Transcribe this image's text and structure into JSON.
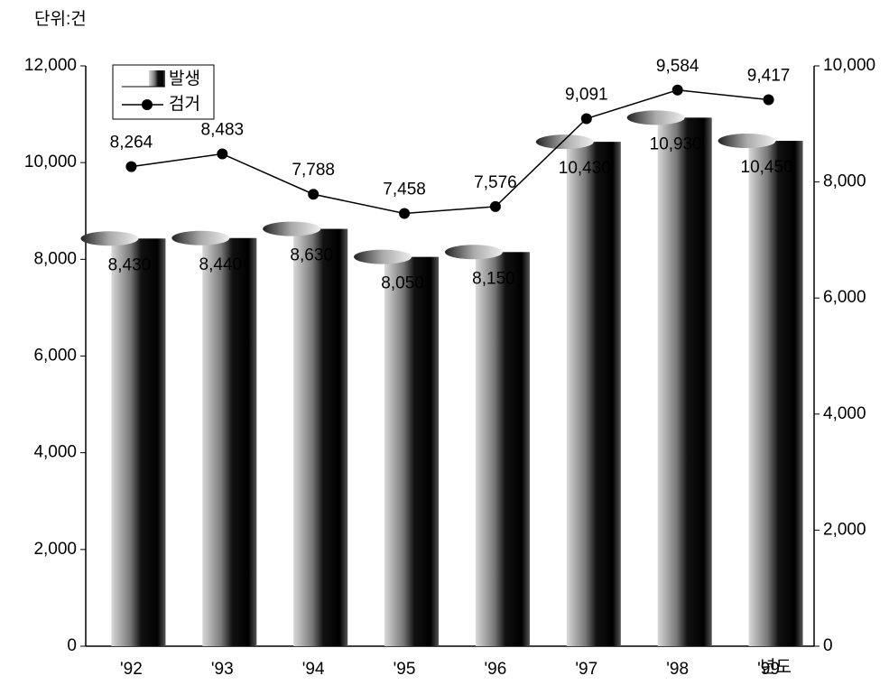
{
  "chart_data": {
    "type": "bar-line",
    "unit_label": "단위:건",
    "x_unit_label": "년도",
    "categories": [
      "'92",
      "'93",
      "'94",
      "'95",
      "'96",
      "'97",
      "'98",
      "'99"
    ],
    "series": [
      {
        "name": "발생",
        "color": "#000000",
        "values": [
          8430,
          8440,
          8630,
          8050,
          8150,
          10430,
          10930,
          10450
        ],
        "value_labels": [
          "8,430",
          "8,440",
          "8,630",
          "8,050",
          "8,150",
          "10,430",
          "10,930",
          "10,450"
        ]
      },
      {
        "name": "검거",
        "color": "#000000",
        "axis": "y2",
        "values": [
          8264,
          8483,
          7788,
          7458,
          7576,
          9091,
          9584,
          9417
        ],
        "value_labels": [
          "8,264",
          "8,483",
          "7,788",
          "7,458",
          "7,576",
          "9,091",
          "9,584",
          "9,417"
        ]
      }
    ],
    "ylim": [
      0,
      12000
    ],
    "yticks": [
      0,
      {
        "value": 2000,
        "label": "2,000"
      },
      {
        "value": 4000,
        "label": "4,000"
      },
      {
        "value": 6000,
        "label": "6,000"
      },
      {
        "value": 8000,
        "label": "8,000"
      },
      {
        "value": 10000,
        "label": "10,000"
      },
      {
        "value": 12000,
        "label": "12,000"
      }
    ],
    "y2lim": [
      0,
      10000
    ],
    "y2ticks": [
      0,
      {
        "value": 2000,
        "label": "2,000"
      },
      {
        "value": 4000,
        "label": "4,000"
      },
      {
        "value": 6000,
        "label": "6,000"
      },
      {
        "value": 8000,
        "label": "8,000"
      },
      {
        "value": 10000,
        "label": "10,000"
      }
    ],
    "legend": "top-left"
  }
}
